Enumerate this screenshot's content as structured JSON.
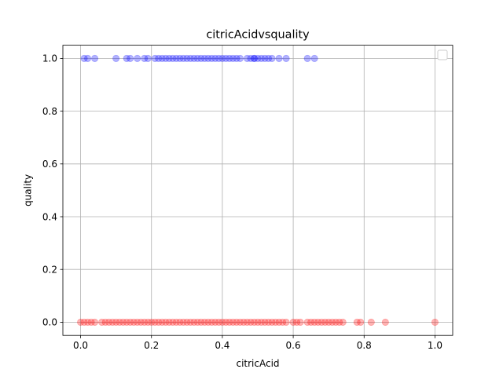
{
  "chart_data": {
    "type": "scatter",
    "title": "citricAcidvsquality",
    "xlabel": "citricAcid",
    "ylabel": "quality",
    "xlim": [
      -0.05,
      1.05
    ],
    "ylim": [
      -0.05,
      1.05
    ],
    "xticks": [
      "0.0",
      "0.2",
      "0.4",
      "0.6",
      "0.8",
      "1.0"
    ],
    "yticks": [
      "0.0",
      "0.2",
      "0.4",
      "0.6",
      "0.8",
      "1.0"
    ],
    "grid": true,
    "legend": {
      "placement": "top-right",
      "entries": []
    },
    "series": [
      {
        "color": "#0000ff",
        "alpha": 0.3,
        "y": 1.0,
        "x": [
          0.01,
          0.02,
          0.04,
          0.1,
          0.13,
          0.14,
          0.16,
          0.18,
          0.19,
          0.21,
          0.22,
          0.23,
          0.24,
          0.25,
          0.26,
          0.27,
          0.28,
          0.29,
          0.3,
          0.31,
          0.32,
          0.33,
          0.34,
          0.35,
          0.36,
          0.37,
          0.38,
          0.39,
          0.4,
          0.41,
          0.42,
          0.43,
          0.44,
          0.45,
          0.47,
          0.48,
          0.49,
          0.49,
          0.5,
          0.51,
          0.52,
          0.53,
          0.54,
          0.56,
          0.58,
          0.64,
          0.66
        ]
      },
      {
        "color": "#ff0000",
        "alpha": 0.3,
        "y": 0.0,
        "x": [
          0.0,
          0.01,
          0.02,
          0.03,
          0.04,
          0.06,
          0.07,
          0.08,
          0.09,
          0.1,
          0.11,
          0.12,
          0.13,
          0.14,
          0.15,
          0.16,
          0.17,
          0.18,
          0.19,
          0.2,
          0.21,
          0.22,
          0.23,
          0.24,
          0.25,
          0.26,
          0.27,
          0.28,
          0.29,
          0.3,
          0.31,
          0.32,
          0.33,
          0.34,
          0.35,
          0.36,
          0.37,
          0.38,
          0.39,
          0.4,
          0.41,
          0.42,
          0.43,
          0.44,
          0.45,
          0.46,
          0.47,
          0.48,
          0.49,
          0.5,
          0.51,
          0.52,
          0.53,
          0.54,
          0.55,
          0.56,
          0.57,
          0.58,
          0.6,
          0.61,
          0.62,
          0.64,
          0.65,
          0.66,
          0.67,
          0.68,
          0.69,
          0.7,
          0.71,
          0.72,
          0.73,
          0.74,
          0.78,
          0.79,
          0.82,
          0.86,
          1.0
        ]
      }
    ]
  }
}
